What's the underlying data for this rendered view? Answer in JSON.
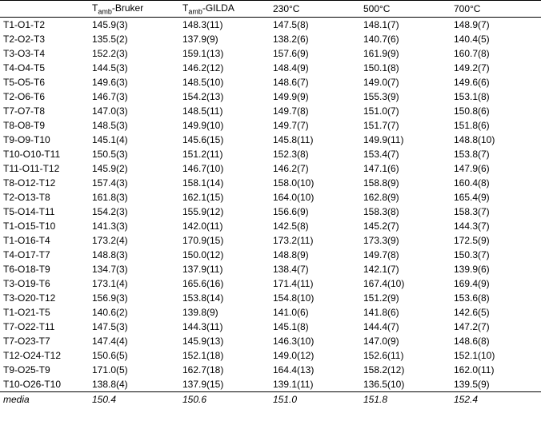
{
  "columns": [
    "",
    "T_amb-Bruker",
    "T_amb-GILDA",
    "230°C",
    "500°C",
    "700°C"
  ],
  "rows": [
    [
      "T1-O1-T2",
      "145.9(3)",
      "148.3(11)",
      "147.5(8)",
      "148.1(7)",
      "148.9(7)"
    ],
    [
      "T2-O2-T3",
      "135.5(2)",
      "137.9(9)",
      "138.2(6)",
      "140.7(6)",
      "140.4(5)"
    ],
    [
      "T3-O3-T4",
      "152.2(3)",
      "159.1(13)",
      "157.6(9)",
      "161.9(9)",
      "160.7(8)"
    ],
    [
      "T4-O4-T5",
      "144.5(3)",
      "146.2(12)",
      "148.4(9)",
      "150.1(8)",
      "149.2(7)"
    ],
    [
      "T5-O5-T6",
      "149.6(3)",
      "148.5(10)",
      "148.6(7)",
      "149.0(7)",
      "149.6(6)"
    ],
    [
      "T2-O6-T6",
      "146.7(3)",
      "154.2(13)",
      "149.9(9)",
      "155.3(9)",
      "153.1(8)"
    ],
    [
      "T7-O7-T8",
      "147.0(3)",
      "148.5(11)",
      "149.7(8)",
      "151.0(7)",
      "150.8(6)"
    ],
    [
      "T8-O8-T9",
      "148.5(3)",
      "149.9(10)",
      "149.7(7)",
      "151.7(7)",
      "151.8(6)"
    ],
    [
      "T9-O9-T10",
      "145.1(4)",
      "145.6(15)",
      "145.8(11)",
      "149.9(11)",
      "148.8(10)"
    ],
    [
      "T10-O10-T11",
      "150.5(3)",
      "151.2(11)",
      "152.3(8)",
      "153.4(7)",
      "153.8(7)"
    ],
    [
      "T11-O11-T12",
      "145.9(2)",
      "146.7(10)",
      "146.2(7)",
      "147.1(6)",
      "147.9(6)"
    ],
    [
      "T8-O12-T12",
      "157.4(3)",
      "158.1(14)",
      "158.0(10)",
      "158.8(9)",
      "160.4(8)"
    ],
    [
      "T2-O13-T8",
      "161.8(3)",
      "162.1(15)",
      "164.0(10)",
      "162.8(9)",
      "165.4(9)"
    ],
    [
      "T5-O14-T11",
      "154.2(3)",
      "155.9(12)",
      "156.6(9)",
      "158.3(8)",
      "158.3(7)"
    ],
    [
      "T1-O15-T10",
      "141.3(3)",
      "142.0(11)",
      "142.5(8)",
      "145.2(7)",
      "144.3(7)"
    ],
    [
      "T1-O16-T4",
      "173.2(4)",
      "170.9(15)",
      "173.2(11)",
      "173.3(9)",
      "172.5(9)"
    ],
    [
      "T4-O17-T7",
      "148.8(3)",
      "150.0(12)",
      "148.8(9)",
      "149.7(8)",
      "150.3(7)"
    ],
    [
      "T6-O18-T9",
      "134.7(3)",
      "137.9(11)",
      "138.4(7)",
      "142.1(7)",
      "139.9(6)"
    ],
    [
      "T3-O19-T6",
      "173.1(4)",
      "165.6(16)",
      "171.4(11)",
      "167.4(10)",
      "169.4(9)"
    ],
    [
      "T3-O20-T12",
      "156.9(3)",
      "153.8(14)",
      "154.8(10)",
      "151.2(9)",
      "153.6(8)"
    ],
    [
      "T1-O21-T5",
      "140.6(2)",
      "139.8(9)",
      "141.0(6)",
      "141.8(6)",
      "142.6(5)"
    ],
    [
      "T7-O22-T11",
      "147.5(3)",
      "144.3(11)",
      "145.1(8)",
      "144.4(7)",
      "147.2(7)"
    ],
    [
      "T7-O23-T7",
      "147.4(4)",
      "145.9(13)",
      "146.3(10)",
      "147.0(9)",
      "148.6(8)"
    ],
    [
      "T12-O24-T12",
      "150.6(5)",
      "152.1(18)",
      "149.0(12)",
      "152.6(11)",
      "152.1(10)"
    ],
    [
      "T9-O25-T9",
      "171.0(5)",
      "162.7(18)",
      "164.4(13)",
      "158.2(12)",
      "162.0(11)"
    ],
    [
      "T10-O26-T10",
      "138.8(4)",
      "137.9(15)",
      "139.1(11)",
      "136.5(10)",
      "139.5(9)"
    ]
  ],
  "media": [
    "media",
    "150.4",
    "150.6",
    "151.0",
    "151.8",
    "152.4"
  ]
}
